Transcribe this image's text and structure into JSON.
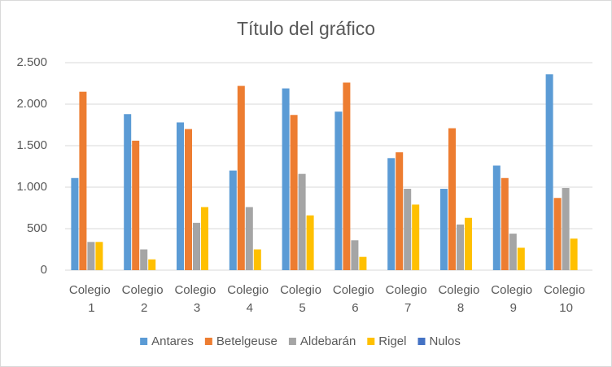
{
  "chart_data": {
    "type": "bar",
    "title": "Título del gráfico",
    "categories": [
      "Colegio 1",
      "Colegio 2",
      "Colegio 3",
      "Colegio 4",
      "Colegio 5",
      "Colegio 6",
      "Colegio 7",
      "Colegio 8",
      "Colegio 9",
      "Colegio 10"
    ],
    "series": [
      {
        "name": "Antares",
        "color": "#5b9bd5",
        "values": [
          1110,
          1880,
          1780,
          1200,
          2190,
          1910,
          1350,
          980,
          1260,
          2360
        ]
      },
      {
        "name": "Betelgeuse",
        "color": "#ed7d31",
        "values": [
          2150,
          1560,
          1700,
          2220,
          1870,
          2260,
          1420,
          1710,
          1110,
          870
        ]
      },
      {
        "name": "Aldebarán",
        "color": "#a5a5a5",
        "values": [
          340,
          250,
          570,
          760,
          1160,
          360,
          980,
          550,
          440,
          990
        ]
      },
      {
        "name": "Rigel",
        "color": "#ffc000",
        "values": [
          340,
          130,
          760,
          250,
          660,
          160,
          790,
          630,
          270,
          380
        ]
      },
      {
        "name": "Nulos",
        "color": "#4472c4",
        "values": [
          0,
          0,
          0,
          0,
          0,
          0,
          0,
          0,
          0,
          0
        ]
      }
    ],
    "ylim": [
      0,
      2500
    ],
    "yticks": [
      0,
      500,
      {
        "value": 1000,
        "label": "1.000"
      },
      {
        "value": 1500,
        "label": "1.500"
      },
      {
        "value": 2000,
        "label": "2.000"
      },
      {
        "value": 2500,
        "label": "2.500"
      }
    ],
    "grid": true,
    "legend": "bottom"
  }
}
